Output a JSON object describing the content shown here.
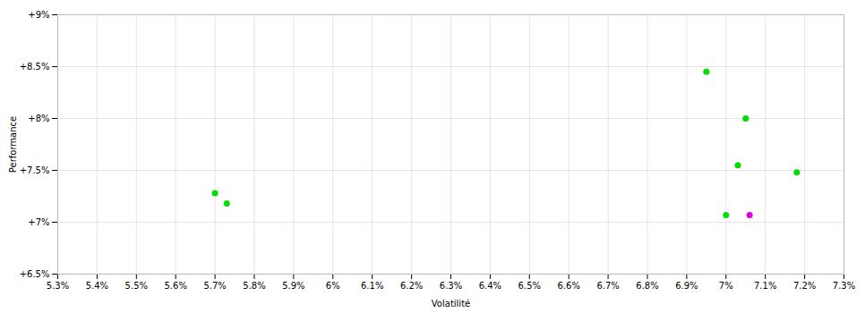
{
  "chart_data": {
    "type": "scatter",
    "xlabel": "Volatilité",
    "ylabel": "Performance",
    "xlim": [
      0.053,
      0.073
    ],
    "ylim": [
      0.065,
      0.09
    ],
    "xticks": [
      {
        "value": 0.053,
        "label": "5.3%"
      },
      {
        "value": 0.054,
        "label": "5.4%"
      },
      {
        "value": 0.055,
        "label": "5.5%"
      },
      {
        "value": 0.056,
        "label": "5.6%"
      },
      {
        "value": 0.057,
        "label": "5.7%"
      },
      {
        "value": 0.058,
        "label": "5.8%"
      },
      {
        "value": 0.059,
        "label": "5.9%"
      },
      {
        "value": 0.06,
        "label": "6%"
      },
      {
        "value": 0.061,
        "label": "6.1%"
      },
      {
        "value": 0.062,
        "label": "6.2%"
      },
      {
        "value": 0.063,
        "label": "6.3%"
      },
      {
        "value": 0.064,
        "label": "6.4%"
      },
      {
        "value": 0.065,
        "label": "6.5%"
      },
      {
        "value": 0.066,
        "label": "6.6%"
      },
      {
        "value": 0.067,
        "label": "6.7%"
      },
      {
        "value": 0.068,
        "label": "6.8%"
      },
      {
        "value": 0.069,
        "label": "6.9%"
      },
      {
        "value": 0.07,
        "label": "7%"
      },
      {
        "value": 0.071,
        "label": "7.1%"
      },
      {
        "value": 0.072,
        "label": "7.2%"
      },
      {
        "value": 0.073,
        "label": "7.3%"
      }
    ],
    "yticks": [
      {
        "value": 0.065,
        "label": "+6.5%"
      },
      {
        "value": 0.07,
        "label": "+7%"
      },
      {
        "value": 0.075,
        "label": "+7.5%"
      },
      {
        "value": 0.08,
        "label": "+8%"
      },
      {
        "value": 0.085,
        "label": "+8.5%"
      },
      {
        "value": 0.09,
        "label": "+9%"
      }
    ],
    "grid": true,
    "series": [
      {
        "color": "#00dd00",
        "x": [
          0.057,
          0.0573,
          0.0695,
          0.0705,
          0.0703,
          0.0718,
          0.07
        ],
        "values": [
          0.0728,
          0.0718,
          0.0845,
          0.08,
          0.0755,
          0.0748,
          0.0707
        ]
      },
      {
        "color": "#dd00dd",
        "x": [
          0.0706
        ],
        "values": [
          0.0707
        ]
      }
    ]
  }
}
